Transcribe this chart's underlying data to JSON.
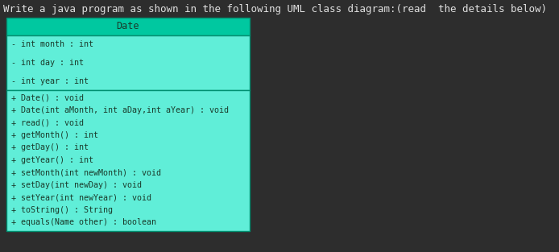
{
  "title_text": "Write a java program as shown in the following UML class diagram:(read  the details below)",
  "background_color": "#2d2d2d",
  "title_color": "#e0e0e0",
  "title_fontsize": 9.0,
  "class_name": "Date",
  "header_bg": "#00c8a0",
  "header_text_color": "#1a3a2a",
  "body_bg": "#60eed8",
  "body_text_color": "#1a3a2a",
  "border_color": "#008f70",
  "attributes": [
    "- int month : int",
    "- int day : int",
    "- int year : int"
  ],
  "methods": [
    "+ Date() : void",
    "+ Date(int aMonth, int aDay,int aYear) : void",
    "+ read() : void",
    "+ getMonth() : int",
    "+ getDay() : int",
    "+ getYear() : int",
    "+ setMonth(int newMonth) : void",
    "+ setDay(int newDay) : void",
    "+ setYear(int newYear) : void",
    "+ toString() : String",
    "+ equals(Name other) : boolean"
  ],
  "mono_fontsize": 7.2,
  "class_fontsize": 8.5,
  "fig_width": 6.94,
  "fig_height": 3.13,
  "dpi": 100
}
